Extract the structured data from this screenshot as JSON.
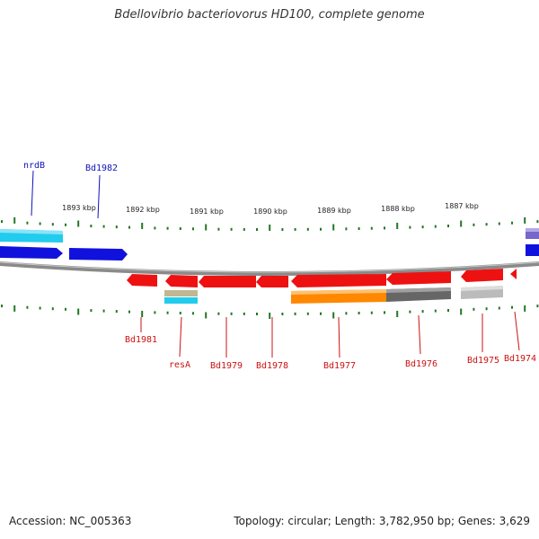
{
  "title": "Bdellovibrio bacteriovorus HD100, complete genome",
  "footer": {
    "accession": "Accession: NC_005363",
    "info": "Topology: circular; Length: 3,782,950 bp; Genes: 3,629"
  },
  "colors": {
    "forward_cds": "#1111dd",
    "reverse_cds": "#ee1111",
    "forward_label": "#1111bb",
    "reverse_label": "#cc1111",
    "tick": "#227722",
    "backbone": "#888888",
    "cog_cyan": "#22ccee",
    "cog_orange": "#ff8800",
    "cog_darkgray": "#666666",
    "cog_lightgray": "#bbbbbb",
    "cog_tan": "#c0b890",
    "cog_purple": "#7766cc"
  },
  "ticks": [
    "1893 kbp",
    "1892 kbp",
    "1891 kbp",
    "1890 kbp",
    "1889 kbp",
    "1888 kbp",
    "1887 kbp"
  ],
  "forward_labels": [
    "nrdB",
    "Bd1982"
  ],
  "reverse_labels": [
    "Bd1981",
    "resA",
    "Bd1979",
    "Bd1978",
    "Bd1977",
    "Bd1976",
    "Bd1975",
    "Bd1974"
  ]
}
